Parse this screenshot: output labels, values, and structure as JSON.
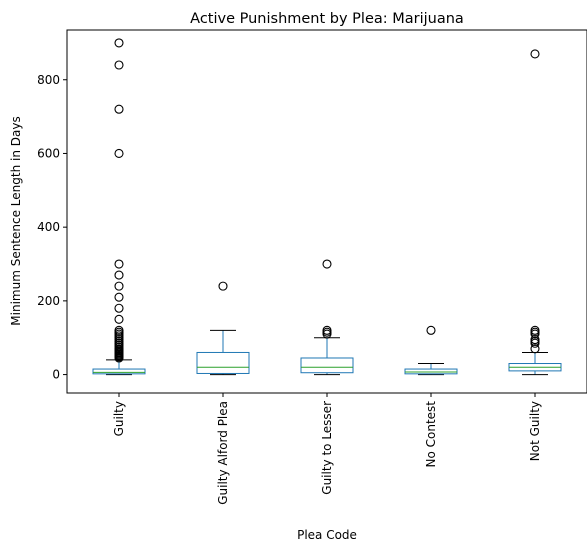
{
  "chart_data": {
    "type": "box",
    "title": "Active Punishment by Plea: Marijuana",
    "xlabel": "Plea Code",
    "ylabel": "Minimum Sentence Length in Days",
    "ylim": [
      -50,
      935
    ],
    "yticks": [
      0,
      200,
      400,
      600,
      800
    ],
    "grid": false,
    "colors": {
      "box": "#1f77b4",
      "whisker": "#1f77b4",
      "cap": "#000000",
      "median": "#2ca02c",
      "flier": "#000000"
    },
    "categories": [
      "Guilty",
      "Guilty Alford Plea",
      "Guilty to Lesser",
      "No Contest",
      "Not Guilty"
    ],
    "boxes": [
      {
        "category": "Guilty",
        "whislo": 0,
        "q1": 2,
        "median": 6,
        "q3": 15,
        "whishi": 40,
        "fliers": [
          45,
          48,
          50,
          52,
          55,
          58,
          60,
          63,
          65,
          68,
          70,
          75,
          80,
          85,
          90,
          95,
          100,
          105,
          110,
          115,
          120,
          150,
          180,
          210,
          240,
          270,
          300,
          600,
          720,
          840,
          900
        ]
      },
      {
        "category": "Guilty Alford Plea",
        "whislo": 0,
        "q1": 3,
        "median": 20,
        "q3": 60,
        "whishi": 120,
        "fliers": [
          240
        ]
      },
      {
        "category": "Guilty to Lesser",
        "whislo": 0,
        "q1": 5,
        "median": 20,
        "q3": 45,
        "whishi": 100,
        "fliers": [
          110,
          115,
          120,
          300
        ]
      },
      {
        "category": "No Contest",
        "whislo": 0,
        "q1": 2,
        "median": 7,
        "q3": 15,
        "whishi": 30,
        "fliers": [
          120
        ]
      },
      {
        "category": "Not Guilty",
        "whislo": 0,
        "q1": 10,
        "median": 20,
        "q3": 30,
        "whishi": 60,
        "fliers": [
          70,
          85,
          90,
          95,
          110,
          115,
          120,
          870
        ]
      }
    ]
  }
}
